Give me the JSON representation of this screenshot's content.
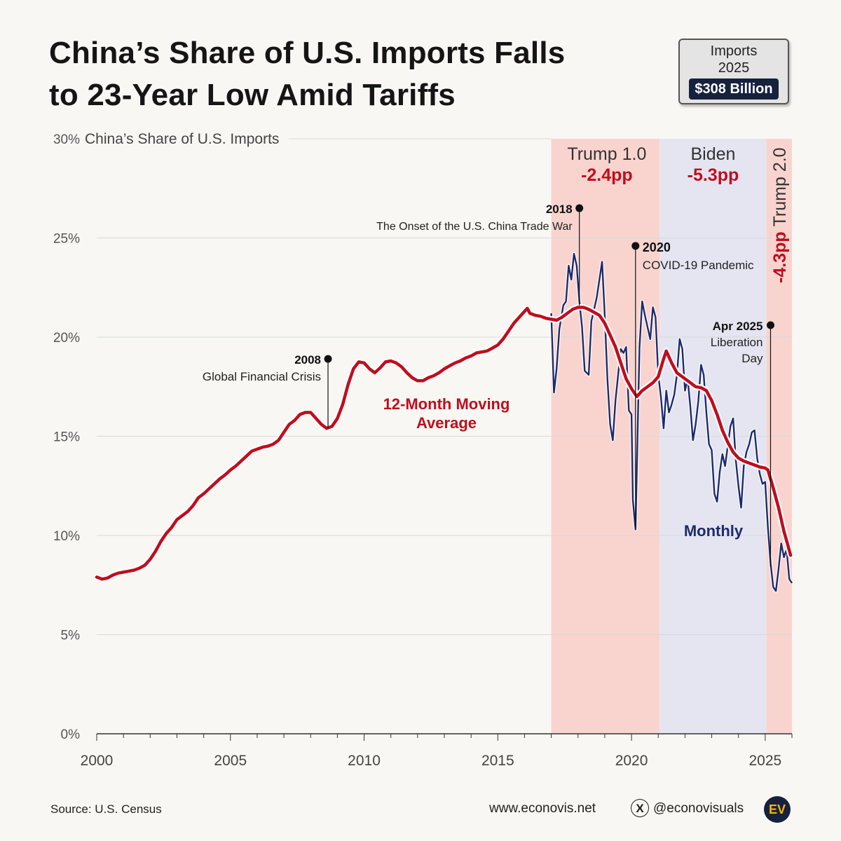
{
  "title": {
    "line1": "China’s Share of U.S. Imports Falls",
    "line2": "to 23-Year Low Amid Tariffs"
  },
  "badge": {
    "line1": "Imports",
    "line2": "2025",
    "value": "$308 Billion"
  },
  "chart_data": {
    "type": "line",
    "title": "China’s Share of U.S. Imports",
    "ylabel": "China’s Share of U.S. Imports",
    "xlabel": "",
    "xlim": [
      2000,
      2026
    ],
    "ylim": [
      0,
      30
    ],
    "x_ticks": [
      2000,
      2005,
      2010,
      2015,
      2020,
      2025
    ],
    "x_tick_labels": [
      "2000",
      "2005",
      "2010",
      "2015",
      "2020",
      "2025"
    ],
    "y_ticks": [
      0,
      5,
      10,
      15,
      20,
      25,
      30
    ],
    "y_tick_labels": [
      "0%",
      "5%",
      "10%",
      "15%",
      "20%",
      "25%",
      "30%"
    ],
    "grid": true,
    "colors": {
      "moving_average": "#c00d1e",
      "monthly": "#1c2b6b",
      "trump": "#f9d4cf",
      "biden": "#e5e4f1",
      "grid": "#d9d9d9",
      "label_red": "#c00d1e"
    },
    "periods": [
      {
        "name": "Trump 1.0",
        "change": "-2.4pp",
        "start": 2017.0,
        "end": 2021.05,
        "color": "#f9d4cf"
      },
      {
        "name": "Biden",
        "change": "-5.3pp",
        "start": 2021.05,
        "end": 2025.05,
        "color": "#e5e4f1"
      },
      {
        "name": "Trump 2.0",
        "change": "-4.3pp",
        "start": 2025.05,
        "end": 2026.0,
        "color": "#f9d4cf"
      }
    ],
    "series": [
      {
        "name": "12-Month Moving Average",
        "label": "12-Month Moving Average",
        "label_lines": [
          "12-Month Moving",
          "Average"
        ],
        "color": "#c00d1e",
        "points": [
          [
            2000.0,
            7.9
          ],
          [
            2000.2,
            7.8
          ],
          [
            2000.4,
            7.85
          ],
          [
            2000.6,
            8.0
          ],
          [
            2000.8,
            8.1
          ],
          [
            2001.0,
            8.15
          ],
          [
            2001.2,
            8.2
          ],
          [
            2001.4,
            8.25
          ],
          [
            2001.6,
            8.35
          ],
          [
            2001.8,
            8.5
          ],
          [
            2002.0,
            8.8
          ],
          [
            2002.2,
            9.2
          ],
          [
            2002.4,
            9.7
          ],
          [
            2002.6,
            10.1
          ],
          [
            2002.8,
            10.4
          ],
          [
            2003.0,
            10.8
          ],
          [
            2003.2,
            11.0
          ],
          [
            2003.4,
            11.2
          ],
          [
            2003.6,
            11.5
          ],
          [
            2003.8,
            11.9
          ],
          [
            2004.0,
            12.1
          ],
          [
            2004.2,
            12.35
          ],
          [
            2004.4,
            12.6
          ],
          [
            2004.6,
            12.85
          ],
          [
            2004.8,
            13.05
          ],
          [
            2005.0,
            13.3
          ],
          [
            2005.2,
            13.5
          ],
          [
            2005.4,
            13.75
          ],
          [
            2005.6,
            14.0
          ],
          [
            2005.8,
            14.25
          ],
          [
            2006.0,
            14.35
          ],
          [
            2006.2,
            14.45
          ],
          [
            2006.4,
            14.5
          ],
          [
            2006.6,
            14.6
          ],
          [
            2006.8,
            14.8
          ],
          [
            2007.0,
            15.2
          ],
          [
            2007.2,
            15.6
          ],
          [
            2007.4,
            15.8
          ],
          [
            2007.6,
            16.1
          ],
          [
            2007.8,
            16.2
          ],
          [
            2008.0,
            16.2
          ],
          [
            2008.2,
            15.9
          ],
          [
            2008.4,
            15.6
          ],
          [
            2008.6,
            15.4
          ],
          [
            2008.8,
            15.5
          ],
          [
            2009.0,
            15.9
          ],
          [
            2009.2,
            16.6
          ],
          [
            2009.4,
            17.6
          ],
          [
            2009.6,
            18.4
          ],
          [
            2009.8,
            18.75
          ],
          [
            2010.0,
            18.7
          ],
          [
            2010.2,
            18.4
          ],
          [
            2010.4,
            18.2
          ],
          [
            2010.6,
            18.45
          ],
          [
            2010.8,
            18.75
          ],
          [
            2011.0,
            18.8
          ],
          [
            2011.2,
            18.7
          ],
          [
            2011.4,
            18.5
          ],
          [
            2011.6,
            18.2
          ],
          [
            2011.8,
            17.95
          ],
          [
            2012.0,
            17.8
          ],
          [
            2012.2,
            17.8
          ],
          [
            2012.4,
            17.95
          ],
          [
            2012.6,
            18.05
          ],
          [
            2012.8,
            18.2
          ],
          [
            2013.0,
            18.4
          ],
          [
            2013.2,
            18.55
          ],
          [
            2013.4,
            18.7
          ],
          [
            2013.6,
            18.8
          ],
          [
            2013.8,
            18.95
          ],
          [
            2014.0,
            19.05
          ],
          [
            2014.2,
            19.2
          ],
          [
            2014.4,
            19.25
          ],
          [
            2014.6,
            19.3
          ],
          [
            2014.8,
            19.45
          ],
          [
            2015.0,
            19.6
          ],
          [
            2015.2,
            19.9
          ],
          [
            2015.4,
            20.3
          ],
          [
            2015.6,
            20.7
          ],
          [
            2015.8,
            21.0
          ],
          [
            2016.0,
            21.3
          ],
          [
            2016.1,
            21.45
          ],
          [
            2016.2,
            21.2
          ],
          [
            2016.4,
            21.1
          ],
          [
            2016.6,
            21.05
          ],
          [
            2016.8,
            20.95
          ],
          [
            2017.0,
            20.9
          ],
          [
            2017.2,
            20.85
          ],
          [
            2017.4,
            21.0
          ],
          [
            2017.6,
            21.2
          ],
          [
            2017.8,
            21.4
          ],
          [
            2018.0,
            21.5
          ],
          [
            2018.2,
            21.5
          ],
          [
            2018.4,
            21.4
          ],
          [
            2018.6,
            21.25
          ],
          [
            2018.8,
            21.1
          ],
          [
            2019.0,
            20.7
          ],
          [
            2019.2,
            20.1
          ],
          [
            2019.4,
            19.5
          ],
          [
            2019.6,
            18.7
          ],
          [
            2019.8,
            17.9
          ],
          [
            2020.0,
            17.4
          ],
          [
            2020.2,
            17.0
          ],
          [
            2020.4,
            17.3
          ],
          [
            2020.6,
            17.5
          ],
          [
            2020.8,
            17.7
          ],
          [
            2021.0,
            18.0
          ],
          [
            2021.2,
            18.9
          ],
          [
            2021.3,
            19.3
          ],
          [
            2021.5,
            18.7
          ],
          [
            2021.7,
            18.2
          ],
          [
            2022.0,
            17.9
          ],
          [
            2022.2,
            17.7
          ],
          [
            2022.4,
            17.5
          ],
          [
            2022.6,
            17.45
          ],
          [
            2022.8,
            17.3
          ],
          [
            2023.0,
            16.8
          ],
          [
            2023.2,
            16.1
          ],
          [
            2023.4,
            15.3
          ],
          [
            2023.6,
            14.7
          ],
          [
            2023.8,
            14.2
          ],
          [
            2024.0,
            13.9
          ],
          [
            2024.2,
            13.75
          ],
          [
            2024.4,
            13.65
          ],
          [
            2024.6,
            13.55
          ],
          [
            2024.8,
            13.45
          ],
          [
            2025.0,
            13.4
          ],
          [
            2025.1,
            13.3
          ],
          [
            2025.3,
            12.4
          ],
          [
            2025.5,
            11.4
          ],
          [
            2025.7,
            10.2
          ],
          [
            2025.85,
            9.5
          ],
          [
            2025.95,
            9.0
          ]
        ]
      },
      {
        "name": "Monthly",
        "label": "Monthly",
        "color": "#1c2b6b",
        "points": [
          [
            2017.0,
            21.2
          ],
          [
            2017.1,
            17.2
          ],
          [
            2017.2,
            18.4
          ],
          [
            2017.3,
            20.4
          ],
          [
            2017.45,
            21.6
          ],
          [
            2017.55,
            21.8
          ],
          [
            2017.65,
            23.6
          ],
          [
            2017.75,
            22.9
          ],
          [
            2017.85,
            24.2
          ],
          [
            2017.95,
            23.6
          ],
          [
            2018.05,
            21.8
          ],
          [
            2018.15,
            20.5
          ],
          [
            2018.25,
            18.3
          ],
          [
            2018.4,
            18.1
          ],
          [
            2018.5,
            20.8
          ],
          [
            2018.6,
            21.4
          ],
          [
            2018.7,
            22.0
          ],
          [
            2018.8,
            22.9
          ],
          [
            2018.9,
            23.8
          ],
          [
            2019.0,
            21.1
          ],
          [
            2019.1,
            17.9
          ],
          [
            2019.2,
            15.6
          ],
          [
            2019.3,
            14.8
          ],
          [
            2019.4,
            16.8
          ],
          [
            2019.5,
            18.1
          ],
          [
            2019.6,
            19.4
          ],
          [
            2019.7,
            19.2
          ],
          [
            2019.8,
            19.5
          ],
          [
            2019.9,
            16.3
          ],
          [
            2020.0,
            16.1
          ],
          [
            2020.05,
            11.8
          ],
          [
            2020.15,
            10.3
          ],
          [
            2020.25,
            16.5
          ],
          [
            2020.3,
            19.5
          ],
          [
            2020.4,
            21.8
          ],
          [
            2020.5,
            21.1
          ],
          [
            2020.6,
            20.5
          ],
          [
            2020.7,
            19.9
          ],
          [
            2020.8,
            21.5
          ],
          [
            2020.9,
            21.0
          ],
          [
            2021.0,
            18.1
          ],
          [
            2021.1,
            17.0
          ],
          [
            2021.2,
            15.4
          ],
          [
            2021.3,
            17.3
          ],
          [
            2021.4,
            16.2
          ],
          [
            2021.5,
            16.6
          ],
          [
            2021.6,
            17.1
          ],
          [
            2021.7,
            18.1
          ],
          [
            2021.8,
            19.9
          ],
          [
            2021.9,
            19.4
          ],
          [
            2022.0,
            17.3
          ],
          [
            2022.1,
            17.9
          ],
          [
            2022.2,
            16.5
          ],
          [
            2022.3,
            14.8
          ],
          [
            2022.4,
            15.6
          ],
          [
            2022.5,
            16.8
          ],
          [
            2022.6,
            18.6
          ],
          [
            2022.7,
            18.1
          ],
          [
            2022.8,
            16.2
          ],
          [
            2022.9,
            14.6
          ],
          [
            2023.0,
            14.3
          ],
          [
            2023.1,
            12.1
          ],
          [
            2023.2,
            11.7
          ],
          [
            2023.3,
            13.2
          ],
          [
            2023.4,
            14.1
          ],
          [
            2023.5,
            13.5
          ],
          [
            2023.6,
            14.5
          ],
          [
            2023.7,
            15.5
          ],
          [
            2023.8,
            15.9
          ],
          [
            2023.9,
            13.8
          ],
          [
            2024.0,
            12.5
          ],
          [
            2024.1,
            11.4
          ],
          [
            2024.2,
            13.5
          ],
          [
            2024.3,
            14.2
          ],
          [
            2024.4,
            14.6
          ],
          [
            2024.5,
            15.2
          ],
          [
            2024.6,
            15.3
          ],
          [
            2024.7,
            13.9
          ],
          [
            2024.8,
            13.1
          ],
          [
            2024.9,
            12.6
          ],
          [
            2025.0,
            12.7
          ],
          [
            2025.1,
            10.4
          ],
          [
            2025.2,
            8.6
          ],
          [
            2025.3,
            7.4
          ],
          [
            2025.4,
            7.2
          ],
          [
            2025.5,
            8.3
          ],
          [
            2025.6,
            9.6
          ],
          [
            2025.7,
            8.9
          ],
          [
            2025.8,
            9.3
          ],
          [
            2025.9,
            7.8
          ],
          [
            2026.0,
            7.6
          ]
        ]
      }
    ],
    "annotations": [
      {
        "year_label": "2008",
        "text": "Global Financial Crisis",
        "x": 2008.65,
        "y_dot": 18.9,
        "y_line_end": 15.4
      },
      {
        "year_label": "2018",
        "text": "The Onset of the U.S. China Trade War",
        "x": 2018.05,
        "y_dot": 26.5,
        "y_line_end": 21.6
      },
      {
        "year_label": "2020",
        "text": "COVID-19 Pandemic",
        "x": 2020.15,
        "y_dot": 24.6,
        "y_line_end": 10.4
      },
      {
        "year_label": "Apr 2025",
        "text_lines": [
          "Liberation",
          "Day"
        ],
        "x": 2025.2,
        "y_dot": 20.6,
        "y_line_end": 8.4
      }
    ]
  },
  "footer": {
    "source": "Source: U.S. Census",
    "website": "www.econovis.net",
    "x_icon": "x-logo-icon",
    "x_glyph": "X",
    "handle": "@econovisuals",
    "logo": "EV"
  }
}
